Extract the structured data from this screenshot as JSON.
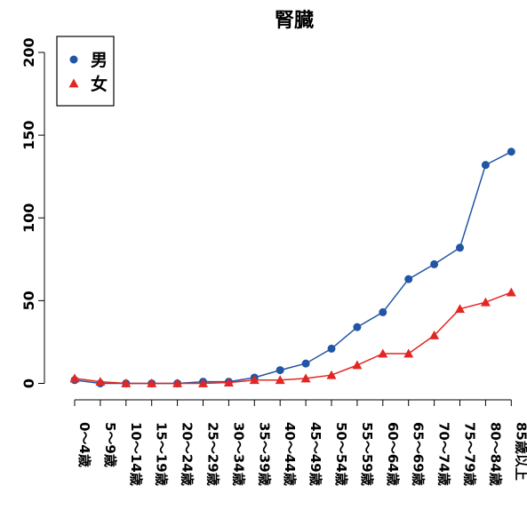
{
  "chart_data": {
    "type": "line",
    "title": "腎臓",
    "xlabel": "",
    "ylabel": "",
    "categories": [
      "0～4歳",
      "5～9歳",
      "10～14歳",
      "15～19歳",
      "20～24歳",
      "25～29歳",
      "30～34歳",
      "35～39歳",
      "40～44歳",
      "45～49歳",
      "50～54歳",
      "55～59歳",
      "60～64歳",
      "65～69歳",
      "70～74歳",
      "75～79歳",
      "80～84歳",
      "85歳以上"
    ],
    "yticks": [
      0,
      50,
      100,
      150,
      200
    ],
    "ylim": [
      0,
      200
    ],
    "grid": false,
    "legend_position": "top-left",
    "series": [
      {
        "name": "男",
        "color": "#2255a4",
        "marker": "circle",
        "values": [
          2,
          0,
          0,
          0,
          0,
          1,
          1,
          3.5,
          8,
          12,
          21,
          34,
          43,
          63,
          72,
          82,
          132,
          140
        ]
      },
      {
        "name": "女",
        "color": "#e32622",
        "marker": "triangle",
        "values": [
          3,
          1,
          0,
          0,
          0,
          0,
          0.5,
          2,
          2,
          3,
          5,
          11,
          18,
          18,
          29,
          45,
          49,
          55
        ]
      }
    ]
  }
}
